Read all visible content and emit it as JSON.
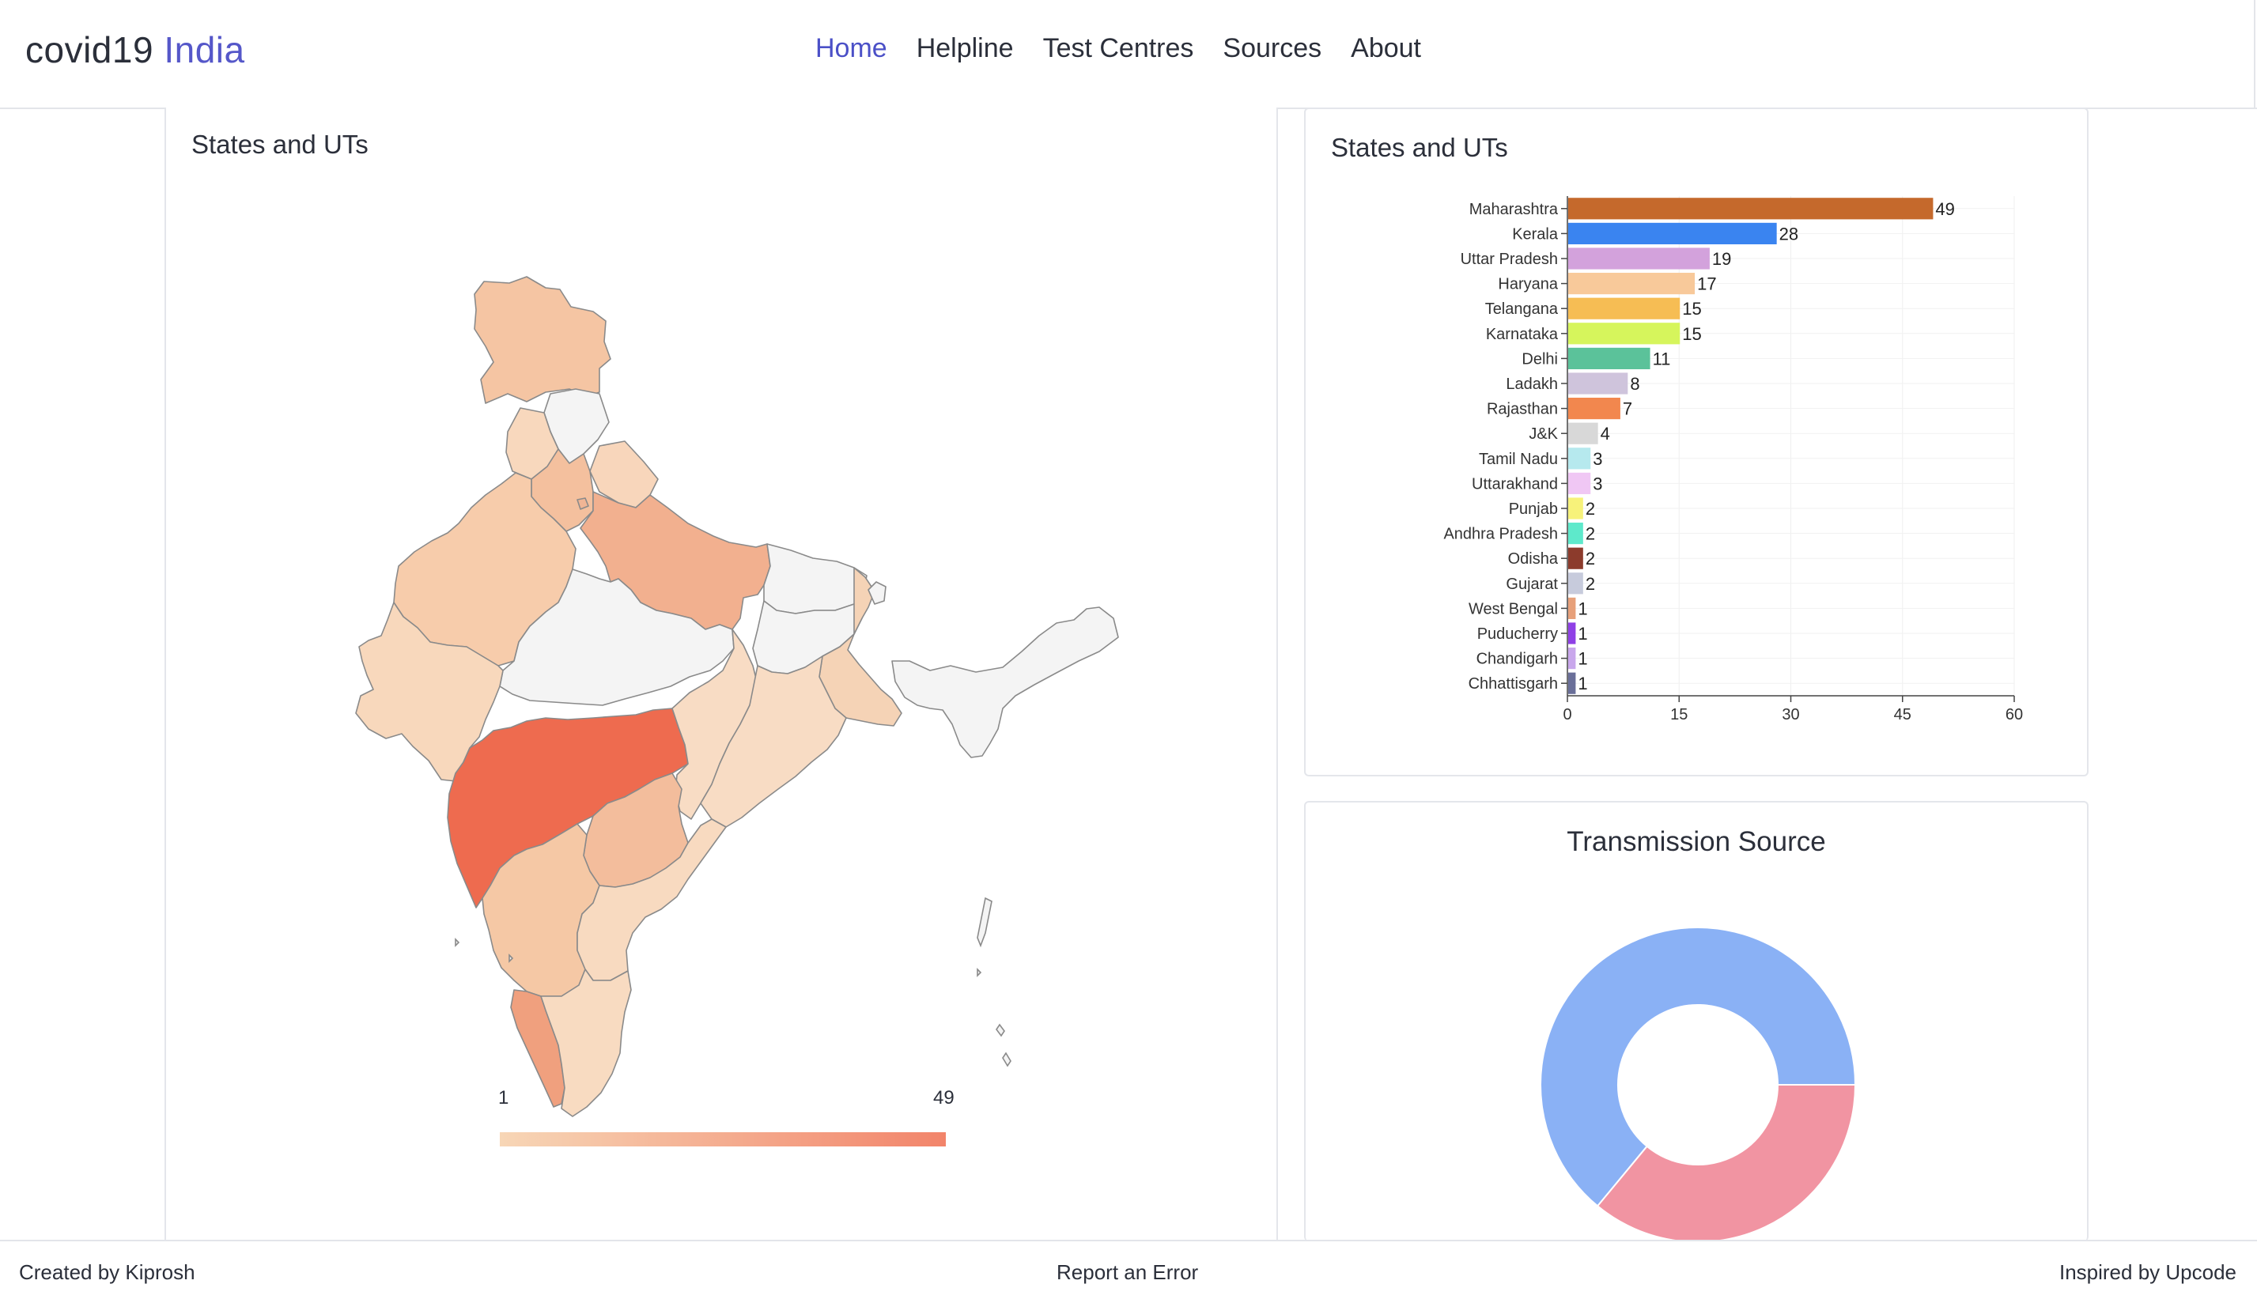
{
  "header": {
    "brand_main": "covid19",
    "brand_accent": "India",
    "nav": [
      {
        "label": "Home",
        "active": true
      },
      {
        "label": "Helpline",
        "active": false
      },
      {
        "label": "Test Centres",
        "active": false
      },
      {
        "label": "Sources",
        "active": false
      },
      {
        "label": "About",
        "active": false
      }
    ]
  },
  "map_panel": {
    "title": "States and UTs",
    "legend_min": "1",
    "legend_max": "49",
    "scale_colors": [
      "#f7d6b6",
      "#f2846a"
    ]
  },
  "bar_panel": {
    "title": "States and UTs"
  },
  "donut_panel": {
    "title": "Transmission Source"
  },
  "footer": {
    "left": "Created by Kiprosh",
    "center": "Report an Error",
    "right": "Inspired by Upcode"
  },
  "chart_data": [
    {
      "type": "bar",
      "orientation": "horizontal",
      "title": "States and UTs",
      "categories": [
        "Maharashtra",
        "Kerala",
        "Uttar Pradesh",
        "Haryana",
        "Telangana",
        "Karnataka",
        "Delhi",
        "Ladakh",
        "Rajasthan",
        "J&K",
        "Tamil Nadu",
        "Uttarakhand",
        "Punjab",
        "Andhra Pradesh",
        "Odisha",
        "Gujarat",
        "West Bengal",
        "Puducherry",
        "Chandigarh",
        "Chhattisgarh"
      ],
      "values": [
        49,
        28,
        19,
        17,
        15,
        15,
        11,
        8,
        7,
        4,
        3,
        3,
        2,
        2,
        2,
        2,
        1,
        1,
        1,
        1
      ],
      "colors": [
        "#c5692c",
        "#3a84f0",
        "#d3a2dc",
        "#f8c99a",
        "#f6bd54",
        "#d6f55c",
        "#5bc29a",
        "#cfc4dc",
        "#f2874e",
        "#d8d8d8",
        "#b6e9ee",
        "#f0c7f4",
        "#f7f27a",
        "#5ee9cb",
        "#8c3b2c",
        "#c7cbdc",
        "#e7a07a",
        "#8f40e6",
        "#c9a7ec",
        "#6a6f99"
      ],
      "xlim": [
        0,
        60
      ],
      "xticks": [
        0,
        15,
        30,
        45,
        60
      ],
      "grid": true
    },
    {
      "type": "pie",
      "style": "donut",
      "title": "Transmission Source",
      "values": [
        64,
        36
      ],
      "colors": [
        "#8ab1f5",
        "#f194a2"
      ]
    }
  ]
}
